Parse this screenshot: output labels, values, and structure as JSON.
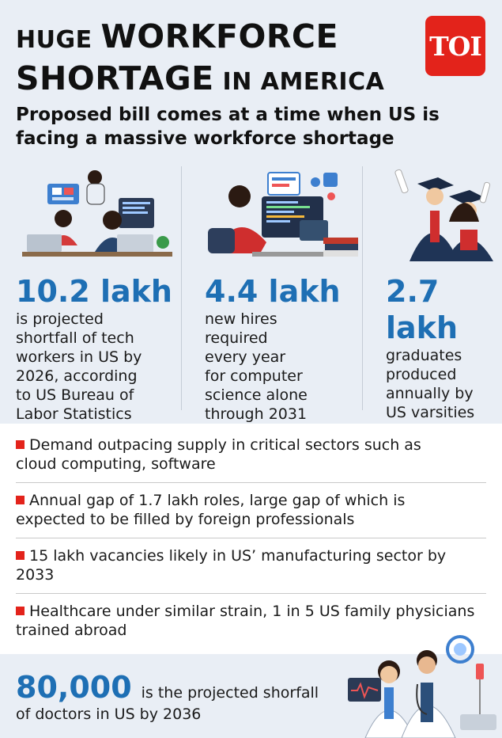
{
  "title": {
    "line1_small": "HUGE ",
    "line1_big": "WORKFORCE",
    "line2_big": "SHORTAGE",
    "line2_small": " IN AMERICA"
  },
  "logo": {
    "text": "TOI",
    "icon": "toi-logo"
  },
  "subtitle": "Proposed bill comes at a time when US is facing a massive workforce shortage",
  "stats": [
    {
      "value": "10.2 lakh",
      "lines": [
        "is projected",
        "shortfall of tech",
        "workers in US by",
        "2026, according",
        "to US Bureau of",
        "Labor Statistics"
      ],
      "icon": "tech-workers-illustration"
    },
    {
      "value": "4.4 lakh",
      "lines": [
        "new hires",
        "required",
        "every year",
        "for computer",
        "science alone",
        "through 2031"
      ],
      "icon": "programmer-illustration"
    },
    {
      "value_line1": "2.7",
      "value_line2": "lakh",
      "lines": [
        "graduates",
        "produced",
        "annually by",
        "US varsities"
      ],
      "icon": "graduates-illustration"
    }
  ],
  "bullets": [
    [
      "Demand outpacing supply in critical sectors such as",
      "cloud computing, software"
    ],
    [
      "Annual gap of 1.7 lakh roles, large gap of which is",
      "expected to be filled by foreign professionals"
    ],
    [
      "15 lakh vacancies likely in US’ manufacturing sector by",
      "2033"
    ],
    [
      "Healthcare under similar strain, 1 in 5 US family physicians",
      "trained abroad"
    ]
  ],
  "footer": {
    "value": "80,000",
    "text1": "is the projected shorfall",
    "text2": "of doctors in US by 2036",
    "icon": "doctors-illustration"
  },
  "colors": {
    "accent_blue": "#1e6fb4",
    "brand_red": "#e3231b",
    "panel_bg": "#e9eef5"
  }
}
